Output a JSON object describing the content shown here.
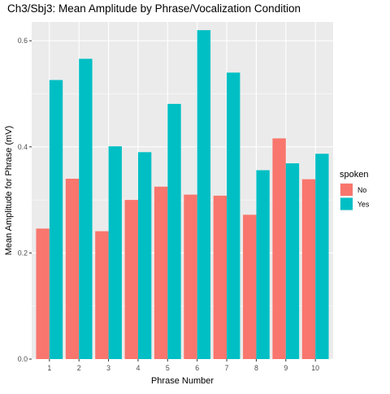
{
  "chart_data": {
    "type": "bar",
    "title": "Ch3/Sbj3: Mean Amplitude by Phrase/Vocalization Condition",
    "xlabel": "Phrase Number",
    "ylabel": "Mean Amplitude for Phrase (mV)",
    "categories": [
      "1",
      "2",
      "3",
      "4",
      "5",
      "6",
      "7",
      "8",
      "9",
      "10"
    ],
    "series": [
      {
        "name": "No",
        "color": "#F8766D",
        "values": [
          0.246,
          0.34,
          0.241,
          0.3,
          0.325,
          0.31,
          0.308,
          0.272,
          0.416,
          0.339
        ]
      },
      {
        "name": "Yes",
        "color": "#00BFC4",
        "values": [
          0.526,
          0.566,
          0.401,
          0.39,
          0.481,
          0.62,
          0.54,
          0.356,
          0.369,
          0.387
        ]
      }
    ],
    "ylim": [
      0,
      0.6355
    ],
    "yticks": [
      0.0,
      0.2,
      0.4,
      0.6
    ],
    "ytick_labels": [
      "0.0",
      "0.2",
      "0.4",
      "0.6"
    ],
    "legend": {
      "title": "spoken",
      "placement": "right"
    },
    "panel_background": "#EBEBEB",
    "grid": true
  }
}
